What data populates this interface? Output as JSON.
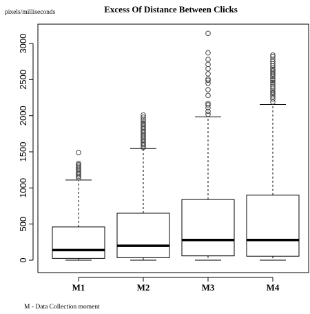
{
  "chart_data": {
    "type": "boxplot",
    "title": "Excess Of Distance Between Clicks",
    "ylabel": "pixels/milliseconds",
    "xlabel": "",
    "ylim": [
      -100,
      3300
    ],
    "yticks": [
      0,
      500,
      1000,
      1500,
      2000,
      2500,
      3000
    ],
    "grid": false,
    "note": "M - Data Collection moment",
    "categories": [
      "M1",
      "M2",
      "M3",
      "M4"
    ],
    "boxes": [
      {
        "name": "M1",
        "whisker_low": 0,
        "q1": 25,
        "median": 140,
        "q3": 460,
        "whisker_high": 1110,
        "outliers": [
          1140,
          1160,
          1180,
          1200,
          1220,
          1240,
          1260,
          1280,
          1300,
          1320,
          1340,
          1490
        ]
      },
      {
        "name": "M2",
        "whisker_low": 0,
        "q1": 35,
        "median": 200,
        "q3": 650,
        "whisker_high": 1545,
        "outliers": [
          1560,
          1580,
          1600,
          1620,
          1640,
          1660,
          1680,
          1700,
          1720,
          1740,
          1760,
          1780,
          1800,
          1820,
          1840,
          1860,
          1880,
          1900,
          1930,
          1950,
          1980,
          2010
        ]
      },
      {
        "name": "M3",
        "whisker_low": 0,
        "q1": 60,
        "median": 280,
        "q3": 840,
        "whisker_high": 1985,
        "outliers": [
          2020,
          2060,
          2110,
          2150,
          2170,
          2280,
          2360,
          2450,
          2490,
          2510,
          2580,
          2650,
          2710,
          2780,
          2870,
          3140
        ]
      },
      {
        "name": "M4",
        "whisker_low": 0,
        "q1": 55,
        "median": 280,
        "q3": 900,
        "whisker_high": 2155,
        "outliers": [
          2190,
          2230,
          2260,
          2290,
          2310,
          2330,
          2350,
          2380,
          2410,
          2440,
          2460,
          2490,
          2510,
          2540,
          2560,
          2580,
          2600,
          2620,
          2640,
          2660,
          2690,
          2720,
          2750,
          2780,
          2820,
          2840
        ]
      }
    ]
  }
}
